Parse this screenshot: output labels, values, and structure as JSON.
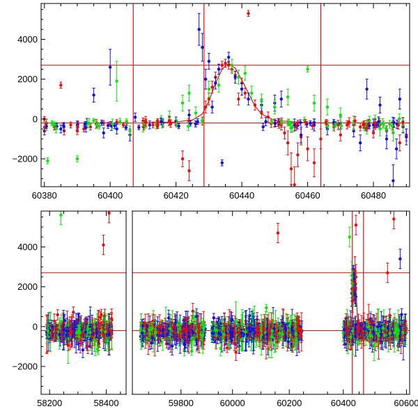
{
  "chart_data": [
    {
      "type": "scatter",
      "title": "",
      "xlabel": "",
      "ylabel": "",
      "xlim": [
        60379,
        60491
      ],
      "ylim": [
        -3400,
        5800
      ],
      "xticks": [
        60380,
        60400,
        60420,
        60440,
        60460,
        60480
      ],
      "yticks": [
        -2000,
        0,
        2000,
        4000
      ],
      "hlines": [
        2700,
        -200
      ],
      "vlines": [
        60407,
        60428.5,
        60464
      ],
      "model_curve": {
        "x": [
          60410,
          60420,
          60425,
          60428,
          60430,
          60432,
          60434,
          60436,
          60438,
          60440,
          60442,
          60444,
          60446,
          60450,
          60460,
          60491
        ],
        "y": [
          -200,
          -150,
          -50,
          250,
          900,
          1800,
          2500,
          2800,
          2550,
          1950,
          1300,
          650,
          250,
          -80,
          -190,
          -200
        ]
      },
      "series": [
        {
          "color": "#e01010",
          "points": [
            [
              60380,
              0,
              120
            ],
            [
              60383,
              -400,
              150
            ],
            [
              60385,
              1700,
              150
            ],
            [
              60386,
              -600,
              200
            ],
            [
              60388,
              -300,
              150
            ],
            [
              60390,
              -600,
              180
            ],
            [
              60392,
              -500,
              150
            ],
            [
              60394,
              -400,
              150
            ],
            [
              60396,
              -300,
              120
            ],
            [
              60398,
              -200,
              120
            ],
            [
              60400,
              -250,
              120
            ],
            [
              60402,
              -150,
              120
            ],
            [
              60404,
              -300,
              120
            ],
            [
              60405,
              -200,
              120
            ],
            [
              60410,
              -100,
              150
            ],
            [
              60413,
              -300,
              150
            ],
            [
              60416,
              -200,
              120
            ],
            [
              60418,
              -150,
              120
            ],
            [
              60420,
              -200,
              150
            ],
            [
              60422,
              -2000,
              400
            ],
            [
              60424,
              -2600,
              500
            ],
            [
              60426,
              -250,
              150
            ],
            [
              60428,
              -100,
              200
            ],
            [
              60429,
              600,
              300
            ],
            [
              60430,
              1000,
              300
            ],
            [
              60431,
              1600,
              300
            ],
            [
              60432,
              2100,
              250
            ],
            [
              60433,
              2500,
              250
            ],
            [
              60434,
              2700,
              200
            ],
            [
              60435,
              2800,
              200
            ],
            [
              60436,
              2700,
              200
            ],
            [
              60437,
              2500,
              200
            ],
            [
              60438,
              2200,
              200
            ],
            [
              60439,
              1000,
              300
            ],
            [
              60440,
              1800,
              250
            ],
            [
              60441,
              1300,
              250
            ],
            [
              60442,
              5300,
              150
            ],
            [
              60444,
              700,
              250
            ],
            [
              60446,
              300,
              250
            ],
            [
              60448,
              100,
              250
            ],
            [
              60450,
              -200,
              200
            ],
            [
              60452,
              -300,
              250
            ],
            [
              60453,
              -700,
              300
            ],
            [
              60454,
              -1200,
              600
            ],
            [
              60455,
              -2500,
              800
            ],
            [
              60456,
              -3300,
              900
            ],
            [
              60457,
              -1800,
              600
            ],
            [
              60458,
              -900,
              400
            ],
            [
              60460,
              -1500,
              600
            ],
            [
              60462,
              -2200,
              700
            ],
            [
              60464,
              -1000,
              500
            ],
            [
              60466,
              -300,
              200
            ],
            [
              60468,
              -400,
              200
            ],
            [
              60470,
              -800,
              300
            ],
            [
              60472,
              -300,
              200
            ],
            [
              60474,
              -300,
              200
            ],
            [
              60476,
              -400,
              200
            ],
            [
              60478,
              -300,
              200
            ],
            [
              60480,
              -700,
              250
            ],
            [
              60482,
              -300,
              200
            ],
            [
              60484,
              -600,
              250
            ],
            [
              60486,
              -400,
              250
            ],
            [
              60488,
              -1200,
              400
            ],
            [
              60490,
              -800,
              300
            ]
          ]
        },
        {
          "color": "#1010e0",
          "points": [
            [
              60380,
              -600,
              200
            ],
            [
              60385,
              -500,
              200
            ],
            [
              60390,
              -300,
              200
            ],
            [
              60395,
              1200,
              350
            ],
            [
              60398,
              -700,
              250
            ],
            [
              60400,
              2600,
              900
            ],
            [
              60402,
              -500,
              250
            ],
            [
              60406,
              -800,
              300
            ],
            [
              60412,
              -300,
              200
            ],
            [
              60416,
              -200,
              200
            ],
            [
              60420,
              -100,
              200
            ],
            [
              60424,
              200,
              250
            ],
            [
              60427,
              4500,
              800
            ],
            [
              60428,
              3600,
              700
            ],
            [
              60429,
              2000,
              500
            ],
            [
              60430,
              2900,
              400
            ],
            [
              60431,
              600,
              300
            ],
            [
              60432,
              1800,
              300
            ],
            [
              60433,
              2500,
              250
            ],
            [
              60434,
              -2200,
              150
            ],
            [
              60436,
              3100,
              250
            ],
            [
              60438,
              2100,
              300
            ],
            [
              60440,
              1500,
              300
            ],
            [
              60442,
              1000,
              300
            ],
            [
              60446,
              700,
              300
            ],
            [
              60450,
              800,
              400
            ],
            [
              60452,
              1000,
              400
            ],
            [
              60456,
              -300,
              300
            ],
            [
              60458,
              -800,
              400
            ],
            [
              60462,
              -300,
              300
            ],
            [
              60466,
              -500,
              300
            ],
            [
              60470,
              -200,
              300
            ],
            [
              60474,
              -600,
              300
            ],
            [
              60476,
              -1200,
              400
            ],
            [
              60478,
              1500,
              500
            ],
            [
              60480,
              -300,
              300
            ],
            [
              60482,
              700,
              400
            ],
            [
              60484,
              -1000,
              500
            ],
            [
              60486,
              -3100,
              800
            ],
            [
              60487,
              -1500,
              500
            ],
            [
              60488,
              1000,
              500
            ],
            [
              60489,
              -400,
              300
            ],
            [
              60490,
              -900,
              400
            ]
          ]
        },
        {
          "color": "#10e010",
          "points": [
            [
              60381,
              -2100,
              150
            ],
            [
              60390,
              -2000,
              150
            ],
            [
              60402,
              1900,
              1000
            ],
            [
              60406,
              -600,
              250
            ],
            [
              60410,
              -400,
              250
            ],
            [
              60414,
              -300,
              200
            ],
            [
              60418,
              100,
              300
            ],
            [
              60422,
              800,
              400
            ],
            [
              60424,
              1300,
              400
            ],
            [
              60426,
              300,
              300
            ],
            [
              60430,
              1500,
              400
            ],
            [
              60433,
              1700,
              350
            ],
            [
              60437,
              2700,
              300
            ],
            [
              60439,
              2100,
              350
            ],
            [
              60441,
              2300,
              350
            ],
            [
              60443,
              1300,
              350
            ],
            [
              60446,
              900,
              350
            ],
            [
              60450,
              600,
              350
            ],
            [
              60454,
              1100,
              400
            ],
            [
              60460,
              2500,
              150
            ],
            [
              60462,
              800,
              400
            ],
            [
              60466,
              600,
              400
            ],
            [
              60470,
              200,
              350
            ],
            [
              60474,
              -200,
              350
            ],
            [
              60478,
              -400,
              350
            ],
            [
              60482,
              -500,
              350
            ],
            [
              60486,
              -700,
              400
            ],
            [
              60489,
              -300,
              350
            ]
          ]
        }
      ]
    },
    {
      "type": "scatter",
      "title": "",
      "xlabel": "",
      "ylabel": "",
      "broken_x_axis": true,
      "xsegments": [
        {
          "range": [
            58170,
            58470
          ],
          "ticks": [
            58200,
            58400
          ]
        },
        {
          "range": [
            59650,
            59880
          ],
          "ticks": [
            59800
          ]
        },
        {
          "range": [
            59910,
            60290
          ],
          "ticks": [
            60000,
            60200
          ]
        },
        {
          "range": [
            60310,
            60610
          ],
          "ticks": [
            60400,
            60600
          ]
        }
      ],
      "ylim": [
        -3400,
        5800
      ],
      "yticks": [
        -2000,
        0,
        2000,
        4000
      ],
      "hlines": [
        2700,
        -200
      ],
      "vlines": [
        60428.5,
        60464
      ],
      "model_curve": {
        "x": [
          60410,
          60420,
          60425,
          60428,
          60430,
          60432,
          60434,
          60436,
          60438,
          60440,
          60442,
          60444,
          60446,
          60450,
          60460
        ],
        "y": [
          -200,
          -150,
          -50,
          250,
          900,
          1800,
          2500,
          2800,
          2550,
          1950,
          1300,
          650,
          250,
          -80,
          -190
        ]
      },
      "observation_seasons": [
        [
          58190,
          58420
        ],
        [
          59675,
          59875
        ],
        [
          59925,
          60245
        ],
        [
          60400,
          60600
        ]
      ],
      "series": [
        {
          "color": "#1010e0",
          "note_points_density": "dense scatter within observation seasons"
        },
        {
          "color": "#10e010",
          "note_points_density": "dense scatter within observation seasons"
        },
        {
          "color": "#e01010",
          "note_points_density": "dense scatter within observation seasons"
        }
      ],
      "highlighted_points": [
        {
          "x": 58410,
          "y": 5700,
          "color": "#e01010"
        },
        {
          "x": 58390,
          "y": 4100,
          "color": "#e01010"
        },
        {
          "x": 58240,
          "y": 5600,
          "color": "#10e010"
        },
        {
          "x": 60160,
          "y": 4700,
          "color": "#e01010"
        },
        {
          "x": 60440,
          "y": 5100,
          "color": "#e01010"
        },
        {
          "x": 60560,
          "y": 5400,
          "color": "#e01010"
        },
        {
          "x": 60580,
          "y": 3400,
          "color": "#1010e0"
        },
        {
          "x": 60420,
          "y": 4500,
          "color": "#10e010"
        },
        {
          "x": 60540,
          "y": 2700,
          "color": "#e01010"
        }
      ]
    }
  ]
}
